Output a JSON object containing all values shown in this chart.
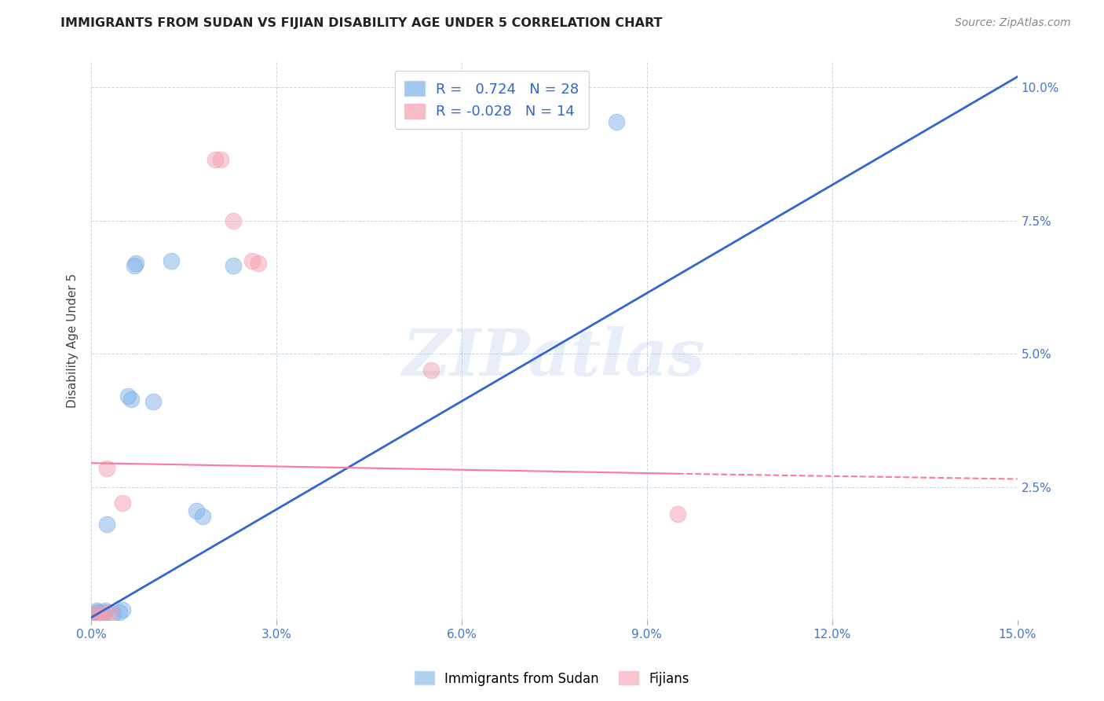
{
  "title": "IMMIGRANTS FROM SUDAN VS FIJIAN DISABILITY AGE UNDER 5 CORRELATION CHART",
  "source": "Source: ZipAtlas.com",
  "xlim": [
    0.0,
    15.0
  ],
  "ylim": [
    0.0,
    10.5
  ],
  "xtick_vals": [
    0.0,
    3.0,
    6.0,
    9.0,
    12.0,
    15.0
  ],
  "ytick_vals": [
    2.5,
    5.0,
    7.5,
    10.0
  ],
  "sudan_color": "#7EB3E8",
  "fijian_color": "#F4A0B0",
  "sudan_line_color": "#3366CC",
  "fijian_line_color": "#FF7799",
  "sudan_R": 0.724,
  "sudan_N": 28,
  "fijian_R": -0.028,
  "fijian_N": 14,
  "sudan_line": [
    [
      0.0,
      0.05
    ],
    [
      15.0,
      10.2
    ]
  ],
  "fijian_line_solid": [
    [
      0.0,
      2.95
    ],
    [
      9.5,
      2.75
    ]
  ],
  "fijian_line_dashed": [
    [
      9.5,
      2.75
    ],
    [
      15.0,
      2.65
    ]
  ],
  "sudan_points": [
    [
      0.02,
      0.05
    ],
    [
      0.03,
      0.1
    ],
    [
      0.05,
      0.08
    ],
    [
      0.06,
      0.12
    ],
    [
      0.07,
      0.05
    ],
    [
      0.08,
      0.18
    ],
    [
      0.09,
      0.1
    ],
    [
      0.1,
      0.15
    ],
    [
      0.12,
      0.05
    ],
    [
      0.13,
      0.08
    ],
    [
      0.15,
      0.12
    ],
    [
      0.18,
      0.1
    ],
    [
      0.2,
      0.15
    ],
    [
      0.22,
      0.18
    ],
    [
      0.25,
      1.8
    ],
    [
      0.35,
      0.12
    ],
    [
      0.45,
      0.15
    ],
    [
      0.5,
      0.2
    ],
    [
      0.6,
      4.2
    ],
    [
      0.65,
      4.15
    ],
    [
      0.7,
      6.65
    ],
    [
      0.72,
      6.7
    ],
    [
      1.0,
      4.1
    ],
    [
      1.3,
      6.75
    ],
    [
      1.7,
      2.05
    ],
    [
      1.8,
      1.95
    ],
    [
      2.3,
      6.65
    ],
    [
      8.5,
      9.35
    ]
  ],
  "fijian_points": [
    [
      0.05,
      0.1
    ],
    [
      0.1,
      0.12
    ],
    [
      0.15,
      0.08
    ],
    [
      0.2,
      0.1
    ],
    [
      0.25,
      2.85
    ],
    [
      0.3,
      0.15
    ],
    [
      0.5,
      2.2
    ],
    [
      2.0,
      8.65
    ],
    [
      2.1,
      8.65
    ],
    [
      2.3,
      7.5
    ],
    [
      2.6,
      6.75
    ],
    [
      2.7,
      6.7
    ],
    [
      5.5,
      4.7
    ],
    [
      9.5,
      2.0
    ]
  ],
  "watermark_text": "ZIPatlas",
  "legend_label_sudan": "Immigrants from Sudan",
  "legend_label_fijian": "Fijians"
}
